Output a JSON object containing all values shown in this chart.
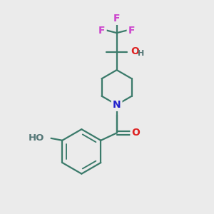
{
  "background_color": "#ebebeb",
  "bond_color": "#3a7a6a",
  "bond_width": 1.6,
  "atom_colors": {
    "F": "#cc44cc",
    "O": "#dd2222",
    "N": "#2222cc",
    "H_gray": "#557777"
  },
  "font_size_atom": 10,
  "xlim": [
    0,
    10
  ],
  "ylim": [
    0,
    10
  ]
}
